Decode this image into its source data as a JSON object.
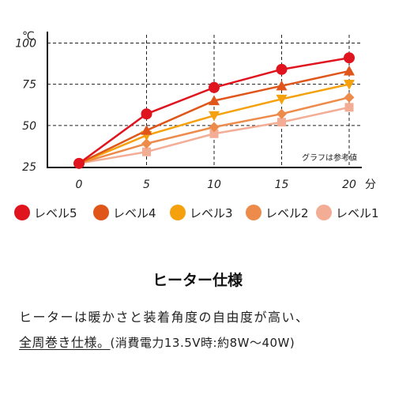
{
  "chart_data": {
    "type": "line",
    "x": [
      0,
      5,
      10,
      15,
      20
    ],
    "x_ticks": [
      "0",
      "5",
      "10",
      "15",
      "20"
    ],
    "x_unit": "分",
    "y_ticks": [
      "25",
      "50",
      "75",
      "100"
    ],
    "y_unit": "℃",
    "ylim": [
      25,
      105
    ],
    "xlim": [
      0,
      20
    ],
    "grid": true,
    "annotation": "グラフは参考値",
    "legend_position": "bottom",
    "series": [
      {
        "name": "レベル5",
        "values": [
          27,
          57,
          73,
          84,
          91
        ],
        "color": "#e0141e",
        "marker": "circle"
      },
      {
        "name": "レベル4",
        "values": [
          27,
          47,
          65,
          74,
          83
        ],
        "color": "#e0561a",
        "marker": "triangle-up"
      },
      {
        "name": "レベル3",
        "values": [
          27,
          44,
          56,
          66,
          75
        ],
        "color": "#f5a10e",
        "marker": "triangle-down"
      },
      {
        "name": "レベル2",
        "values": [
          27,
          39,
          49,
          57,
          67
        ],
        "color": "#ec8b4a",
        "marker": "diamond"
      },
      {
        "name": "レベル1",
        "values": [
          27,
          34,
          45,
          52,
          61
        ],
        "color": "#f4ad95",
        "marker": "square"
      }
    ]
  },
  "heading": "ヒーター仕様",
  "description": {
    "line1": "ヒーターは暖かさと装着角度の自由度が高い、",
    "line2_underlined": "全周巻き仕様。",
    "line2_rest": "(消費電力13.5V時:約8W〜40W)"
  }
}
